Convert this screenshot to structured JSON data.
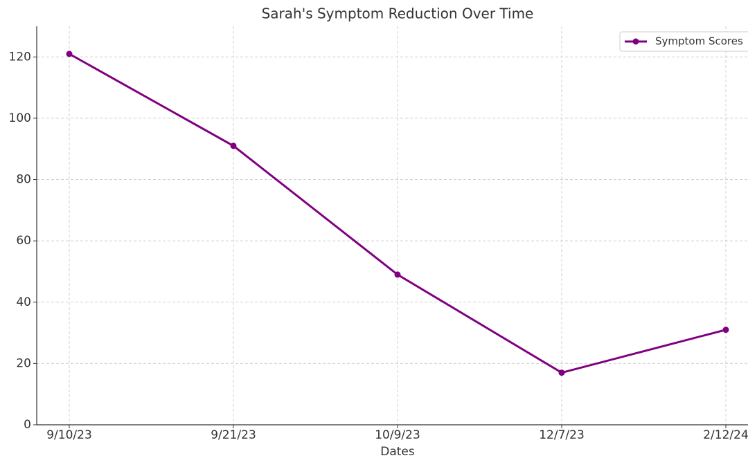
{
  "chart_data": {
    "type": "line",
    "title": "Sarah's Symptom Reduction Over Time",
    "x_label": "Dates",
    "categories": [
      "9/10/23",
      "9/21/23",
      "10/9/23",
      "12/7/23",
      "2/12/24"
    ],
    "series": [
      {
        "name": "Symptom Scores",
        "color": "#800080",
        "values": [
          121,
          91,
          49,
          17,
          31
        ]
      }
    ],
    "ylim": [
      0,
      130
    ],
    "yticks": [
      0,
      20,
      40,
      60,
      80,
      100,
      120
    ],
    "grid": true,
    "legend": "upper right"
  }
}
